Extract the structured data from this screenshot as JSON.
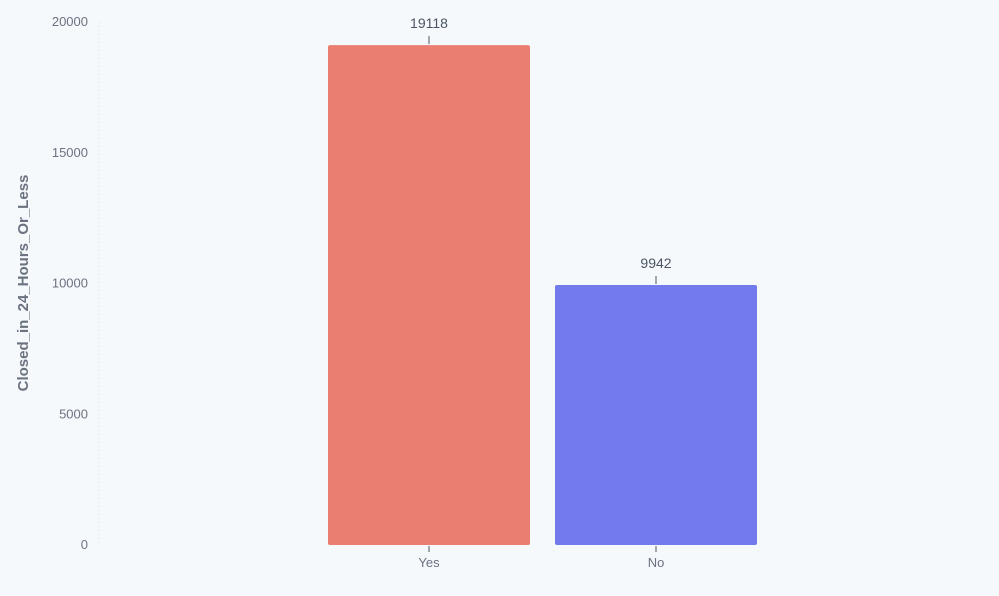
{
  "chart_data": {
    "type": "bar",
    "categories": [
      "Yes",
      "No"
    ],
    "values": [
      19118,
      9942
    ],
    "data_labels": [
      "19118",
      "9942"
    ],
    "colors": [
      "#ea7e71",
      "#717bec"
    ],
    "xlabel": "",
    "ylabel": "Closed_in_24_Hours_Or_Less",
    "ylim": [
      0,
      20000
    ],
    "yticks": [
      0,
      5000,
      10000,
      15000,
      20000
    ],
    "ytick_labels": [
      "0",
      "5000",
      "10000",
      "15000",
      "20000"
    ],
    "grid": false,
    "legend": "none"
  }
}
